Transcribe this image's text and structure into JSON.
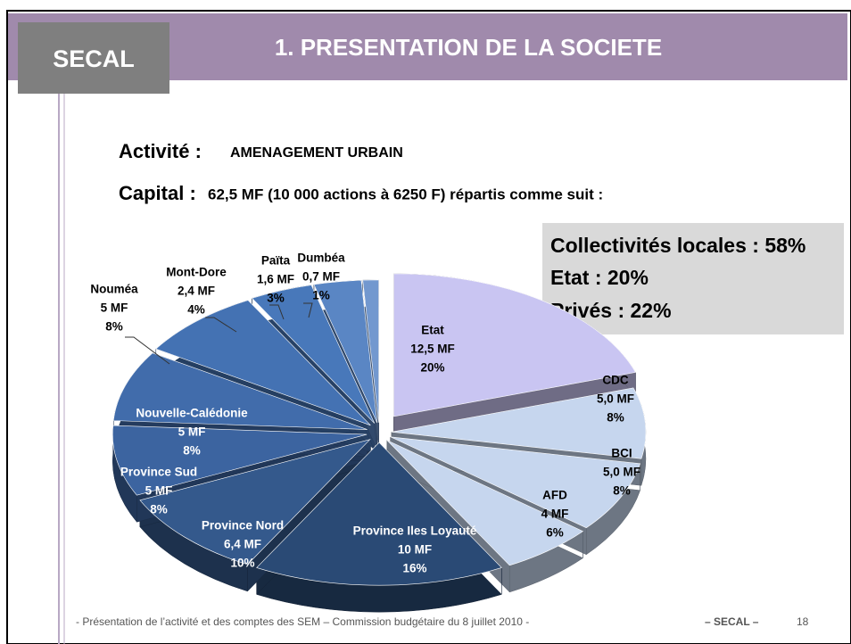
{
  "slide": {
    "brand": "SECAL",
    "heading": "1. PRESENTATION DE LA SOCIETE",
    "activity_label": "Activité :",
    "activity": "AMENAGEMENT URBAIN",
    "capital_label": "Capital :",
    "capital": "62,5 MF (10 000 actions à 6250 F) répartis comme suit :",
    "summary": [
      "Collectivités locales : 58%",
      "Etat : 20%",
      "Privés : 22%"
    ],
    "footer": "- Présentation de l’activité et des comptes des SEM – Commission budgétaire du 8 juillet 2010 -",
    "footer_brand": "– SECAL –",
    "page": "18"
  },
  "chart_data": {
    "type": "pie",
    "categories": [
      "Etat",
      "CDC",
      "BCI",
      "AFD",
      "Province Iles Loyauté",
      "Province Nord",
      "Province Sud",
      "Nouvelle-Calédonie",
      "Nouméa",
      "Mont-Dore",
      "Païta",
      "Dumbéa"
    ],
    "amounts": [
      "12,5 MF",
      "5,0 MF",
      "5,0 MF",
      "4 MF",
      "10 MF",
      "6,4 MF",
      "5 MF",
      "5 MF",
      "5 MF",
      "2,4 MF",
      "1,6 MF",
      "0,7 MF"
    ],
    "values": [
      20,
      8,
      8,
      6,
      16,
      10,
      8,
      8,
      8,
      4,
      3,
      1
    ],
    "value_labels": [
      "20%",
      "8%",
      "8%",
      "6%",
      "16%",
      "10%",
      "8%",
      "8%",
      "8%",
      "4%",
      "3%",
      "1%"
    ],
    "colors": [
      "#c9c5f2",
      "#c6d6ee",
      "#c6d6ee",
      "#c6d6ee",
      "#2a4a75",
      "#34598c",
      "#3c64a0",
      "#416cab",
      "#4472b3",
      "#4878ba",
      "#5a86c4",
      "#7298cf"
    ]
  }
}
